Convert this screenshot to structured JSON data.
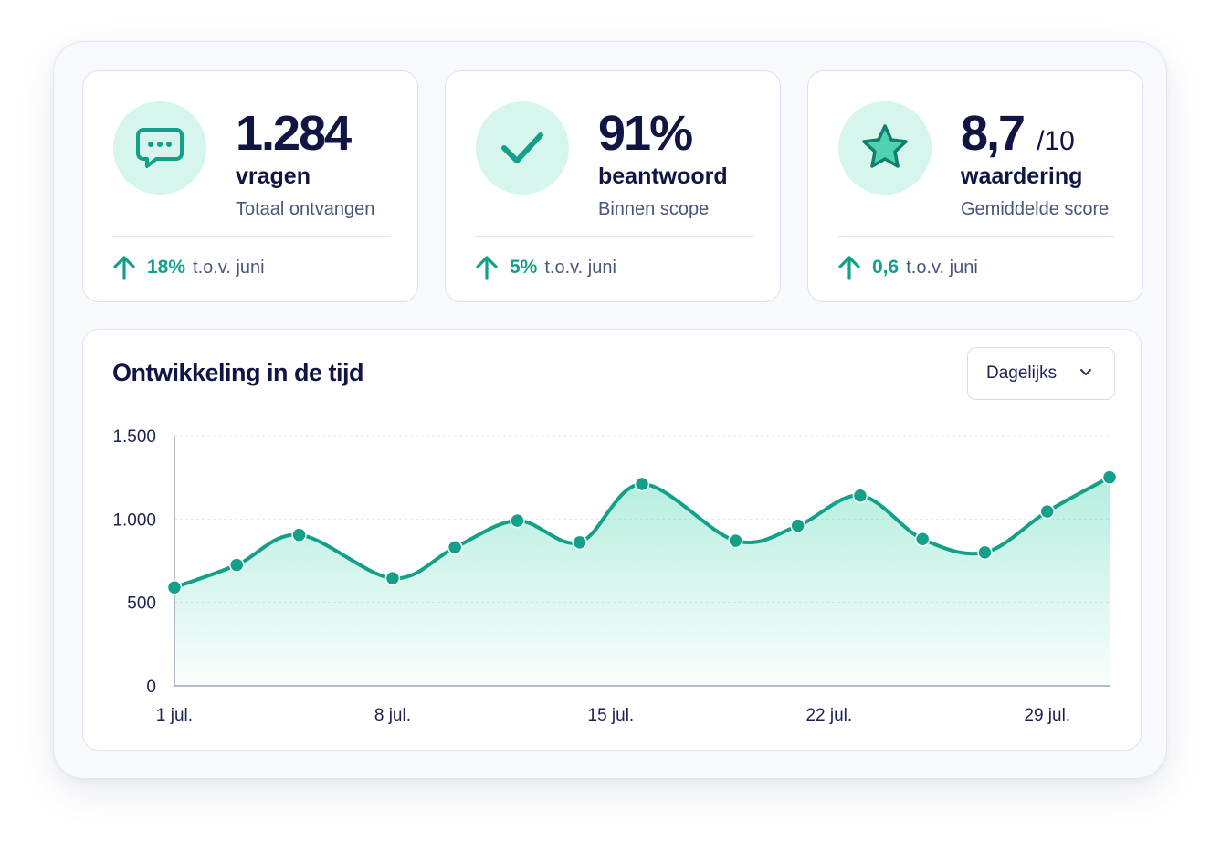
{
  "colors": {
    "accent": "#12a088",
    "accent_light": "#d6f5ec",
    "text_dark": "#101544",
    "text_muted": "#4a557a"
  },
  "stats": [
    {
      "icon": "chat-bubble-icon",
      "value": "1.284",
      "suffix": "",
      "unit": "vragen",
      "subtitle": "Totaal ontvangen",
      "delta": "18%",
      "comparison": "t.o.v. juni"
    },
    {
      "icon": "checkmark-icon",
      "value": "91%",
      "suffix": "",
      "unit": "beantwoord",
      "subtitle": "Binnen scope",
      "delta": "5%",
      "comparison": "t.o.v. juni"
    },
    {
      "icon": "star-icon",
      "value": "8,7",
      "suffix": "/10",
      "unit": "waardering",
      "subtitle": "Gemiddelde score",
      "delta": "0,6",
      "comparison": "t.o.v. juni"
    }
  ],
  "chart": {
    "title": "Ontwikkeling in de tijd",
    "dropdown": {
      "selected": "Dagelijks",
      "icon": "chevron-down-icon"
    }
  },
  "chart_data": {
    "type": "area",
    "title": "Ontwikkeling in de tijd",
    "xlabel": "",
    "ylabel": "",
    "ylim": [
      0,
      1500
    ],
    "yticks": [
      0,
      500,
      1000,
      1500
    ],
    "ytick_labels": [
      "0",
      "500",
      "1.000",
      "1.500"
    ],
    "xlim": [
      1,
      31
    ],
    "xticks": [
      1,
      8,
      15,
      22,
      29
    ],
    "xtick_labels": [
      "1 jul.",
      "8 jul.",
      "15 jul.",
      "22 jul.",
      "29 jul."
    ],
    "grid": "horizontal dashed",
    "smooth": true,
    "x": [
      1,
      3,
      5,
      8,
      10,
      12,
      14,
      16,
      19,
      21,
      23,
      25,
      27,
      29,
      31
    ],
    "values": [
      590,
      725,
      905,
      645,
      830,
      990,
      860,
      1210,
      870,
      960,
      1140,
      880,
      800,
      1045,
      1250
    ]
  }
}
